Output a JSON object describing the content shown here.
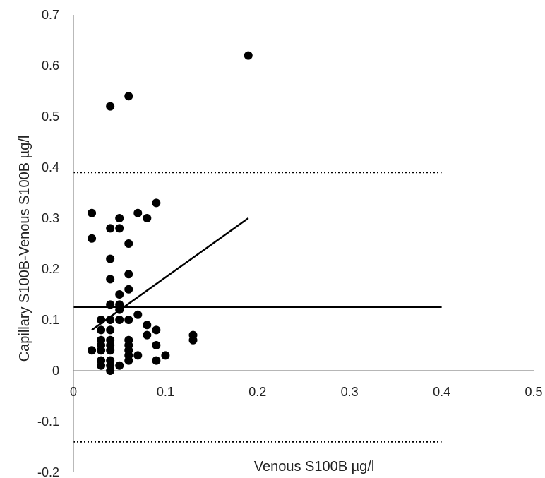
{
  "chart_data": {
    "type": "scatter",
    "title": "",
    "xlabel": "Venous S100B µg/l",
    "ylabel": "Capillary S100B-Venous S100B µg/l",
    "xlim": [
      0,
      0.5
    ],
    "ylim": [
      -0.2,
      0.7
    ],
    "xticks": [
      "0",
      "0.1",
      "0.2",
      "0.3",
      "0.4",
      "0.5"
    ],
    "yticks": [
      "-0.2",
      "-0.1",
      "0",
      "0.1",
      "0.2",
      "0.3",
      "0.4",
      "0.5",
      "0.6",
      "0.7"
    ],
    "grid": false,
    "series": [
      {
        "points": [
          [
            0.02,
            0.31
          ],
          [
            0.02,
            0.26
          ],
          [
            0.02,
            0.04
          ],
          [
            0.03,
            0.1
          ],
          [
            0.03,
            0.08
          ],
          [
            0.03,
            0.06
          ],
          [
            0.03,
            0.05
          ],
          [
            0.03,
            0.04
          ],
          [
            0.03,
            0.02
          ],
          [
            0.03,
            0.01
          ],
          [
            0.04,
            0.52
          ],
          [
            0.04,
            0.28
          ],
          [
            0.04,
            0.22
          ],
          [
            0.04,
            0.18
          ],
          [
            0.04,
            0.13
          ],
          [
            0.04,
            0.1
          ],
          [
            0.04,
            0.08
          ],
          [
            0.04,
            0.06
          ],
          [
            0.04,
            0.05
          ],
          [
            0.04,
            0.04
          ],
          [
            0.04,
            0.02
          ],
          [
            0.04,
            0.01
          ],
          [
            0.04,
            0.0
          ],
          [
            0.05,
            0.3
          ],
          [
            0.05,
            0.28
          ],
          [
            0.05,
            0.15
          ],
          [
            0.05,
            0.13
          ],
          [
            0.05,
            0.12
          ],
          [
            0.05,
            0.1
          ],
          [
            0.05,
            0.01
          ],
          [
            0.06,
            0.54
          ],
          [
            0.06,
            0.25
          ],
          [
            0.06,
            0.19
          ],
          [
            0.06,
            0.16
          ],
          [
            0.06,
            0.1
          ],
          [
            0.06,
            0.06
          ],
          [
            0.06,
            0.05
          ],
          [
            0.06,
            0.04
          ],
          [
            0.06,
            0.03
          ],
          [
            0.06,
            0.02
          ],
          [
            0.07,
            0.31
          ],
          [
            0.07,
            0.11
          ],
          [
            0.07,
            0.03
          ],
          [
            0.08,
            0.3
          ],
          [
            0.08,
            0.09
          ],
          [
            0.08,
            0.07
          ],
          [
            0.09,
            0.33
          ],
          [
            0.09,
            0.08
          ],
          [
            0.09,
            0.05
          ],
          [
            0.09,
            0.02
          ],
          [
            0.1,
            0.03
          ],
          [
            0.13,
            0.07
          ],
          [
            0.13,
            0.06
          ],
          [
            0.19,
            0.62
          ]
        ]
      }
    ],
    "reference_lines": {
      "mean": 0.125,
      "upper_limit": 0.39,
      "lower_limit": -0.14,
      "x_range": [
        0,
        0.4
      ]
    },
    "trend_line": {
      "from": [
        0.02,
        0.08
      ],
      "to": [
        0.19,
        0.3
      ]
    }
  }
}
